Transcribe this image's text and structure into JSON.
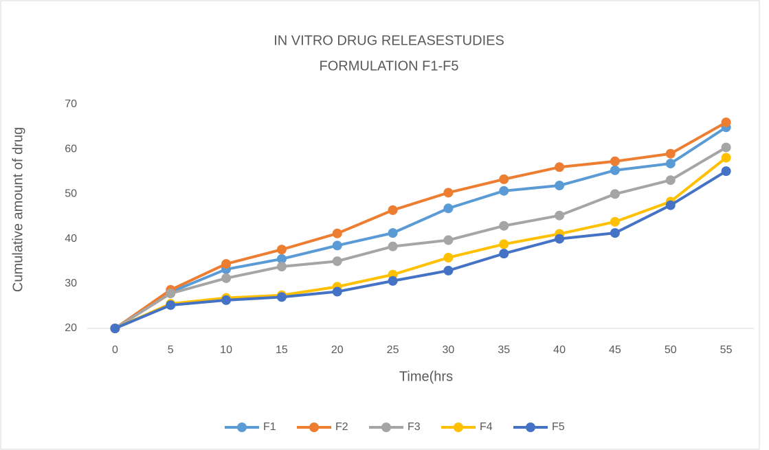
{
  "chart_data": {
    "type": "line",
    "title": [
      "IN VITRO DRUG RELEASESTUDIES",
      "FORMULATION F1-F5"
    ],
    "x_label": "Time(hrs",
    "y_label": "Cumulative amount of drug",
    "categories": [
      "0",
      "5",
      "10",
      "15",
      "20",
      "25",
      "30",
      "35",
      "40",
      "45",
      "50",
      "55"
    ],
    "ylim": [
      20,
      70
    ],
    "yticks": [
      20,
      30,
      40,
      50,
      60,
      70
    ],
    "grid": false,
    "legend": "bottom",
    "series": [
      {
        "name": "F1",
        "color": "#5b9bd5",
        "values": [
          20,
          28.1,
          33.2,
          35.5,
          38.5,
          41.3,
          46.8,
          50.7,
          51.9,
          55.3,
          56.8,
          64.9
        ]
      },
      {
        "name": "F2",
        "color": "#ed7d31",
        "values": [
          20,
          28.6,
          34.4,
          37.6,
          41.2,
          46.4,
          50.3,
          53.3,
          56,
          57.3,
          59,
          66
        ]
      },
      {
        "name": "F3",
        "color": "#a5a5a5",
        "values": [
          20,
          27.8,
          31.2,
          33.8,
          35,
          38.3,
          39.7,
          42.9,
          45.2,
          50,
          53.1,
          60.4
        ]
      },
      {
        "name": "F4",
        "color": "#ffc000",
        "values": [
          20,
          25.5,
          26.8,
          27.4,
          29.3,
          32,
          35.8,
          38.8,
          41.1,
          43.8,
          48.3,
          58.1
        ]
      },
      {
        "name": "F5",
        "color": "#4472c4",
        "values": [
          20,
          25.2,
          26.3,
          27,
          28.2,
          30.6,
          32.9,
          36.7,
          40,
          41.3,
          47.5,
          55.1
        ]
      }
    ]
  }
}
